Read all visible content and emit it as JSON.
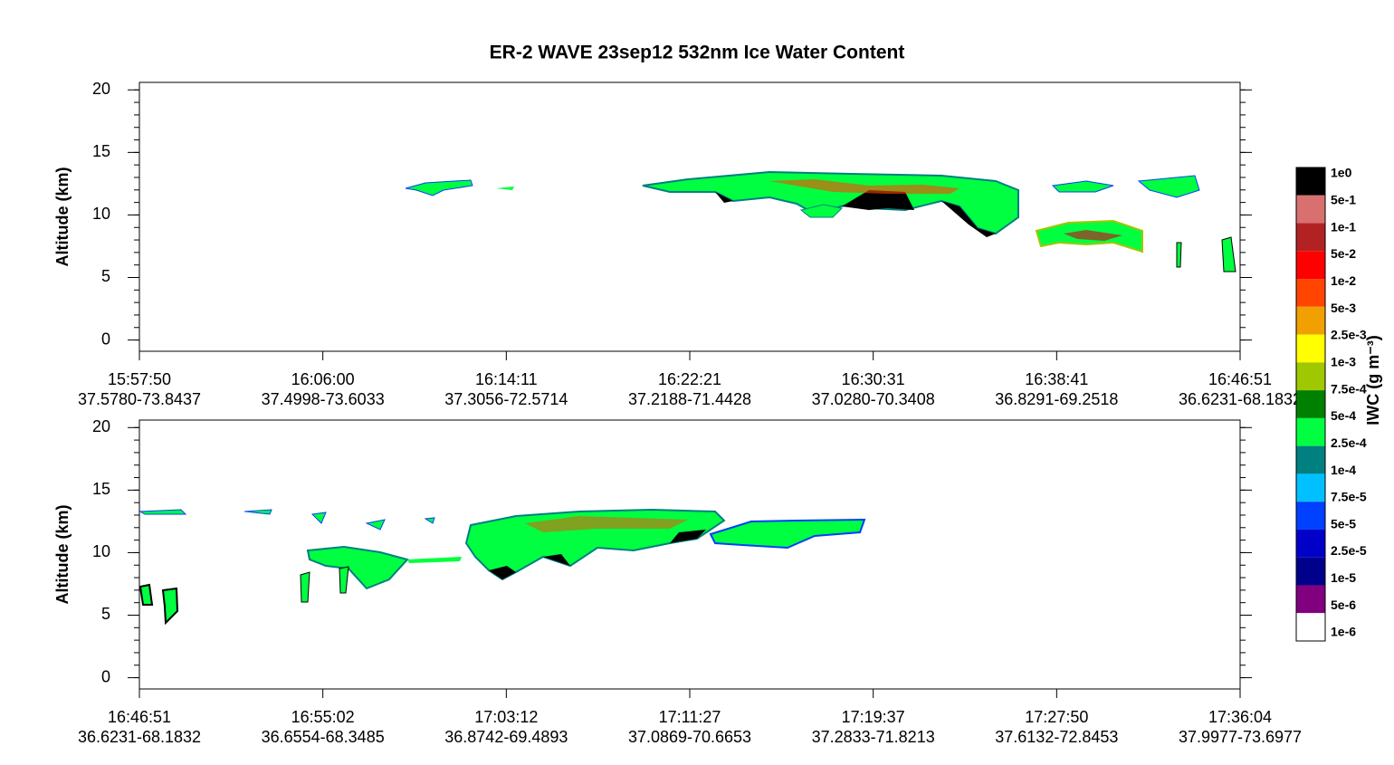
{
  "chart_data": [
    {
      "type": "curtain",
      "title": "ER-2  WAVE  23sep12  532nm Ice Water Content",
      "ylabel": "Altitude (km)",
      "ylim": [
        -0.9,
        20.6
      ],
      "yticks": [
        0,
        5,
        10,
        15,
        20
      ],
      "yminor_step": 1,
      "categories": [
        "15:57:50",
        "16:06:00",
        "16:14:11",
        "16:22:21",
        "16:30:31",
        "16:38:41",
        "16:46:51"
      ],
      "sublabels": [
        "37.5780-73.8437",
        "37.4998-73.6033",
        "37.3056-72.5714",
        "37.2188-71.4428",
        "37.0280-70.3408",
        "36.8291-69.2518",
        "36.6231-68.1832"
      ]
    },
    {
      "type": "curtain",
      "ylabel": "Altitude (km)",
      "ylim": [
        -0.9,
        20.6
      ],
      "yticks": [
        0,
        5,
        10,
        15,
        20
      ],
      "yminor_step": 1,
      "categories": [
        "16:46:51",
        "16:55:02",
        "17:03:12",
        "17:11:27",
        "17:19:37",
        "17:27:50",
        "17:36:04"
      ],
      "sublabels": [
        "36.6231-68.1832",
        "36.6554-68.3485",
        "36.8742-69.4893",
        "37.0869-70.6653",
        "37.2833-71.8213",
        "37.6132-72.8453",
        "37.9977-73.6977"
      ]
    }
  ],
  "colorbar": {
    "label": "IWC (g m⁻³)",
    "ticks": [
      "1e0",
      "5e-1",
      "1e-1",
      "5e-2",
      "1e-2",
      "5e-3",
      "2.5e-3",
      "1e-3",
      "7.5e-4",
      "5e-4",
      "2.5e-4",
      "1e-4",
      "7.5e-5",
      "5e-5",
      "2.5e-5",
      "1e-5",
      "5e-6",
      "1e-6"
    ],
    "colors": [
      "#000000",
      "#d87070",
      "#b22222",
      "#ff0000",
      "#ff4500",
      "#f0a000",
      "#ffff00",
      "#a0c800",
      "#008000",
      "#00ff40",
      "#008080",
      "#00c0ff",
      "#0040ff",
      "#0000c8",
      "#00008b",
      "#800080",
      "#ffffff"
    ]
  }
}
